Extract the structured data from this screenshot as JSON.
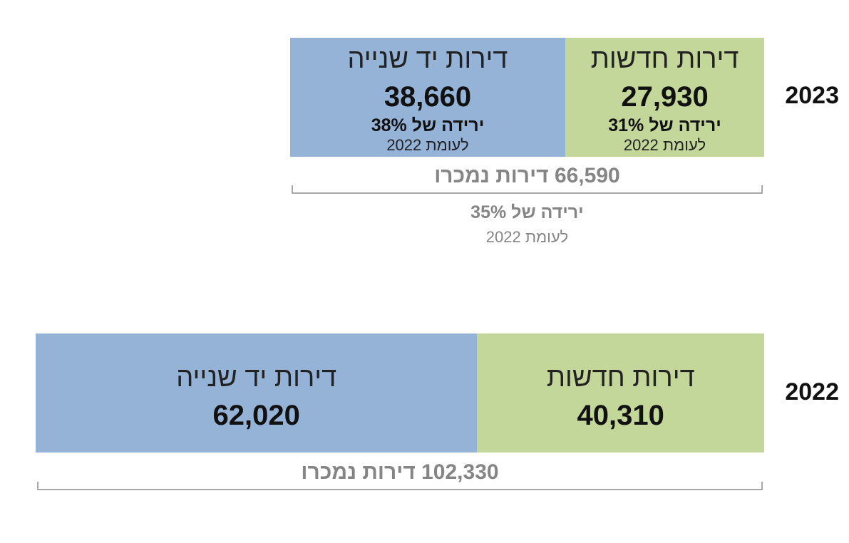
{
  "chart_data": {
    "type": "bar",
    "orientation": "horizontal",
    "stacked": true,
    "categories": [
      "2023",
      "2022"
    ],
    "series": [
      {
        "name": "דירות חדשות",
        "values": [
          27930,
          40310
        ],
        "color": "#c4d79b"
      },
      {
        "name": "דירות יד שנייה",
        "values": [
          38660,
          62020
        ],
        "color": "#95b3d7"
      }
    ],
    "labels": {
      "2023": {
        "new": {
          "name": "דירות חדשות",
          "value": "27,930",
          "drop": "ירידה של 31%",
          "vs": "לעומת 2022"
        },
        "second": {
          "name": "דירות יד שנייה",
          "value": "38,660",
          "drop": "ירידה של 38%",
          "vs": "לעומת 2022"
        },
        "total": "66,590 דירות נמכרו",
        "total_drop": "ירידה של 35%",
        "total_vs": "לעומת 2022"
      },
      "2022": {
        "new": {
          "name": "דירות חדשות",
          "value": "40,310"
        },
        "second": {
          "name": "דירות יד שנייה",
          "value": "62,020"
        },
        "total": "102,330 דירות נמכרו"
      }
    },
    "totals": [
      66590,
      102330
    ],
    "xlim": [
      0,
      102330
    ],
    "grid": false,
    "legend": "none"
  }
}
